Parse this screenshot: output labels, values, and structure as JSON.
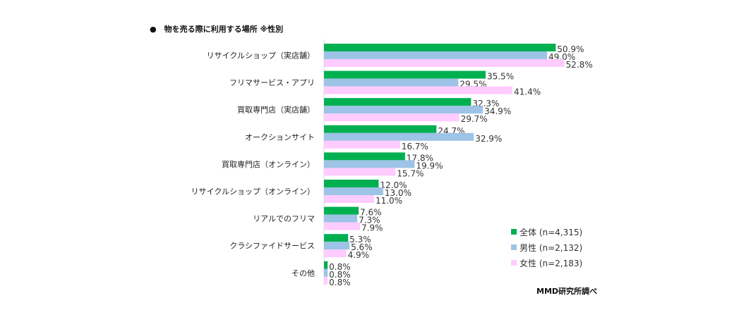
{
  "title": "●　物を売る際に利用する場所 ※性別",
  "source": "MMD研究所調べ",
  "chart_data": {
    "type": "bar",
    "orientation": "horizontal",
    "title": "物を売る際に利用する場所 ※性別",
    "categories": [
      "リサイクルショップ（実店舗）",
      "フリマサービス・アプリ",
      "買取専門店（実店舗）",
      "オークションサイト",
      "買取専門店（オンライン）",
      "リサイクルショップ（オンライン）",
      "リアルでのフリマ",
      "クラシファイドサービス",
      "その他"
    ],
    "series": [
      {
        "name": "全体 (n=4,315)",
        "color": "#00b050",
        "values": [
          50.9,
          35.5,
          32.3,
          24.7,
          17.8,
          12.0,
          7.6,
          5.3,
          0.8
        ]
      },
      {
        "name": "男性 (n=2,132)",
        "color": "#9dc3e6",
        "values": [
          49.0,
          29.5,
          34.9,
          32.9,
          19.9,
          13.0,
          7.3,
          5.6,
          0.8
        ]
      },
      {
        "name": "女性 (n=2,183)",
        "color": "#ffccff",
        "values": [
          52.8,
          41.4,
          29.7,
          16.7,
          15.7,
          11.0,
          7.9,
          4.9,
          0.8
        ]
      }
    ],
    "unit": "%",
    "legend": "bottom-right"
  }
}
